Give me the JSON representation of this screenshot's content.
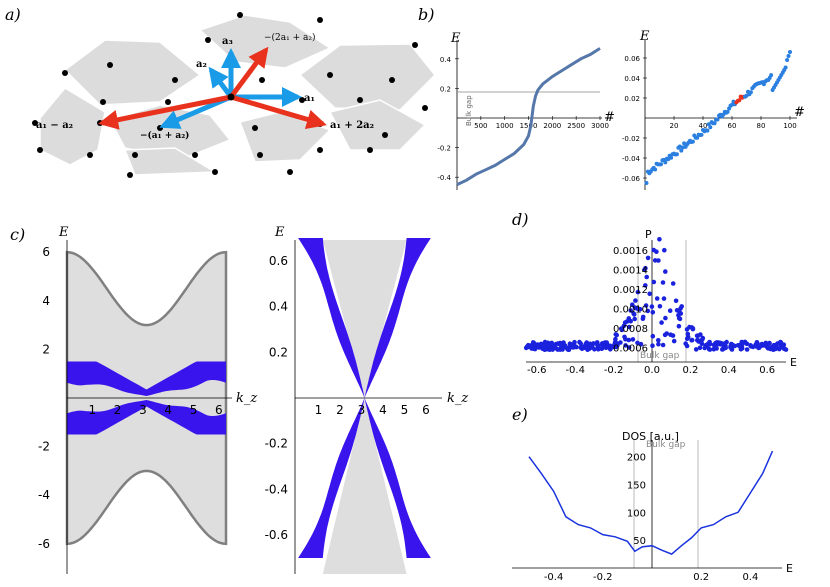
{
  "panel_labels": [
    "a)",
    "b)",
    "c)",
    "d)",
    "e)"
  ],
  "lattice": {
    "vector_labels": [
      "a₃",
      "−(2a₁ + a₂)",
      "a₂",
      "a₁",
      "a₁ − a₂",
      "−(a₁ + a₂)",
      "a₁ + 2a₂"
    ],
    "colors": {
      "blue": "#1a9be8",
      "red": "#e8321e",
      "hex": "#dcdcdc"
    }
  },
  "chart_data": [
    {
      "id": "b-left",
      "type": "line",
      "title": "",
      "ylabel": "E",
      "xlabel": "#",
      "xlim": [
        0,
        3000
      ],
      "ylim": [
        -0.5,
        0.5
      ],
      "xticks": [
        "500",
        "1000",
        "1500",
        "2000",
        "2500",
        "3000"
      ],
      "yticks": [
        "0.4",
        "0.2",
        "-0.2",
        "-0.4"
      ],
      "annotation": "Bulk gap",
      "gap_line": 0.19,
      "x": [
        0,
        200,
        400,
        600,
        800,
        1000,
        1200,
        1400,
        1500,
        1550,
        1600,
        1650,
        1700,
        1800,
        2000,
        2200,
        2400,
        2600,
        2800,
        3000
      ],
      "y": [
        -0.45,
        -0.42,
        -0.38,
        -0.35,
        -0.32,
        -0.28,
        -0.24,
        -0.18,
        -0.12,
        -0.05,
        0.08,
        0.15,
        0.19,
        0.23,
        0.28,
        0.32,
        0.36,
        0.4,
        0.43,
        0.47
      ]
    },
    {
      "id": "b-right",
      "type": "scatter",
      "title": "",
      "ylabel": "E",
      "xlabel": "#",
      "xlim": [
        0,
        100
      ],
      "ylim": [
        -0.07,
        0.07
      ],
      "xticks": [
        "20",
        "40",
        "60",
        "80",
        "100"
      ],
      "yticks": [
        "0.06",
        "0.04",
        "0.02",
        "-0.02",
        "-0.04",
        "-0.06"
      ],
      "highlight_range": [
        63,
        68
      ]
    },
    {
      "id": "c-left",
      "type": "area",
      "xlabel": "k_z",
      "ylabel": "E",
      "xlim": [
        0,
        6.28
      ],
      "ylim": [
        -6.5,
        6.5
      ],
      "xticks": [
        "1",
        "2",
        "3",
        "4",
        "5",
        "6"
      ],
      "yticks": [
        "6",
        "4",
        "2",
        "-2",
        "-4",
        "-6"
      ],
      "outer_band_max": [
        6.0,
        3.0
      ],
      "inner_band": [
        0.3,
        1.5
      ]
    },
    {
      "id": "c-right",
      "type": "area",
      "xlabel": "k_z",
      "ylabel": "E",
      "xlim": [
        0,
        6.28
      ],
      "ylim": [
        -0.75,
        0.7
      ],
      "xticks": [
        "1",
        "2",
        "3",
        "4",
        "5",
        "6"
      ],
      "yticks": [
        "0.6",
        "0.4",
        "0.2",
        "-0.2",
        "-0.4",
        "-0.6"
      ]
    },
    {
      "id": "d",
      "type": "scatter",
      "xlabel": "E",
      "ylabel": "P",
      "xlim": [
        -0.68,
        0.72
      ],
      "ylim": [
        0.00045,
        0.0017
      ],
      "xticks": [
        "-0.6",
        "-0.4",
        "-0.2",
        "0.0",
        "0.2",
        "0.4",
        "0.6"
      ],
      "yticks": [
        "0.0016",
        "0.0014",
        "0.0012",
        "0.0010",
        "0.0008",
        "0.0006"
      ],
      "annotation": "Bulk gap",
      "gap_lines": [
        -0.07,
        0.19
      ]
    },
    {
      "id": "e",
      "type": "line",
      "xlabel": "E",
      "ylabel": "DOS [a.u.]",
      "xlim": [
        -0.52,
        0.52
      ],
      "ylim": [
        0,
        230
      ],
      "xticks": [
        "-0.4",
        "-0.2",
        "0.2",
        "0.4"
      ],
      "yticks": [
        "200",
        "150",
        "100",
        "50"
      ],
      "annotation": "Bulk gap",
      "gap_lines": [
        -0.07,
        0.19
      ],
      "x": [
        -0.5,
        -0.45,
        -0.4,
        -0.35,
        -0.3,
        -0.25,
        -0.2,
        -0.15,
        -0.1,
        -0.07,
        -0.04,
        0.0,
        0.04,
        0.08,
        0.12,
        0.16,
        0.2,
        0.25,
        0.3,
        0.35,
        0.4,
        0.45,
        0.49
      ],
      "y": [
        200,
        170,
        138,
        92,
        78,
        72,
        60,
        56,
        48,
        30,
        38,
        40,
        32,
        25,
        40,
        54,
        72,
        78,
        92,
        100,
        135,
        170,
        210
      ]
    }
  ]
}
